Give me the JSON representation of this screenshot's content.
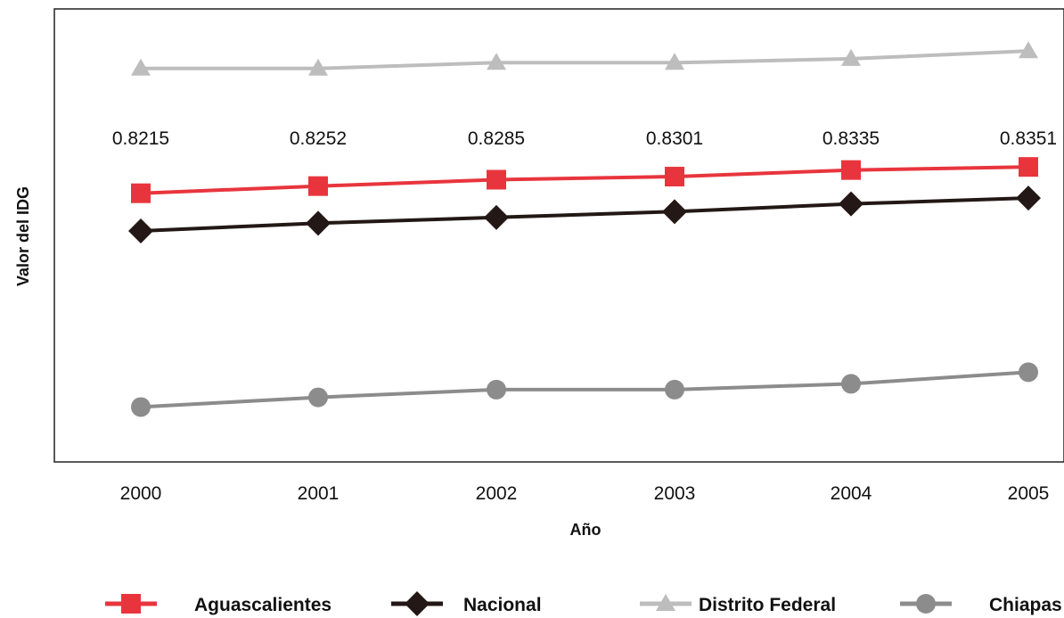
{
  "chart_data": {
    "type": "line",
    "xlabel": "Año",
    "ylabel": "Valor del IDG",
    "categories": [
      "2000",
      "2001",
      "2002",
      "2003",
      "2004",
      "2005"
    ],
    "ylim": [
      0.69,
      0.92
    ],
    "grid": false,
    "legend_position": "bottom",
    "series": [
      {
        "name": "Aguascalientes",
        "values": [
          0.8215,
          0.8252,
          0.8285,
          0.8301,
          0.8335,
          0.8351
        ],
        "color": "#e8353d",
        "marker": "square",
        "data_labels": [
          "0.8215",
          "0.8252",
          "0.8285",
          "0.8301",
          "0.8335",
          "0.8351"
        ]
      },
      {
        "name": "Nacional",
        "values": [
          0.802,
          0.806,
          0.809,
          0.812,
          0.816,
          0.819
        ],
        "color": "#231815",
        "marker": "diamond"
      },
      {
        "name": "Distrito Federal",
        "values": [
          0.886,
          0.886,
          0.889,
          0.889,
          0.891,
          0.895
        ],
        "color": "#bdbdbd",
        "marker": "triangle"
      },
      {
        "name": "Chiapas",
        "values": [
          0.711,
          0.716,
          0.72,
          0.72,
          0.723,
          0.729
        ],
        "color": "#8c8c8c",
        "marker": "circle"
      }
    ]
  }
}
